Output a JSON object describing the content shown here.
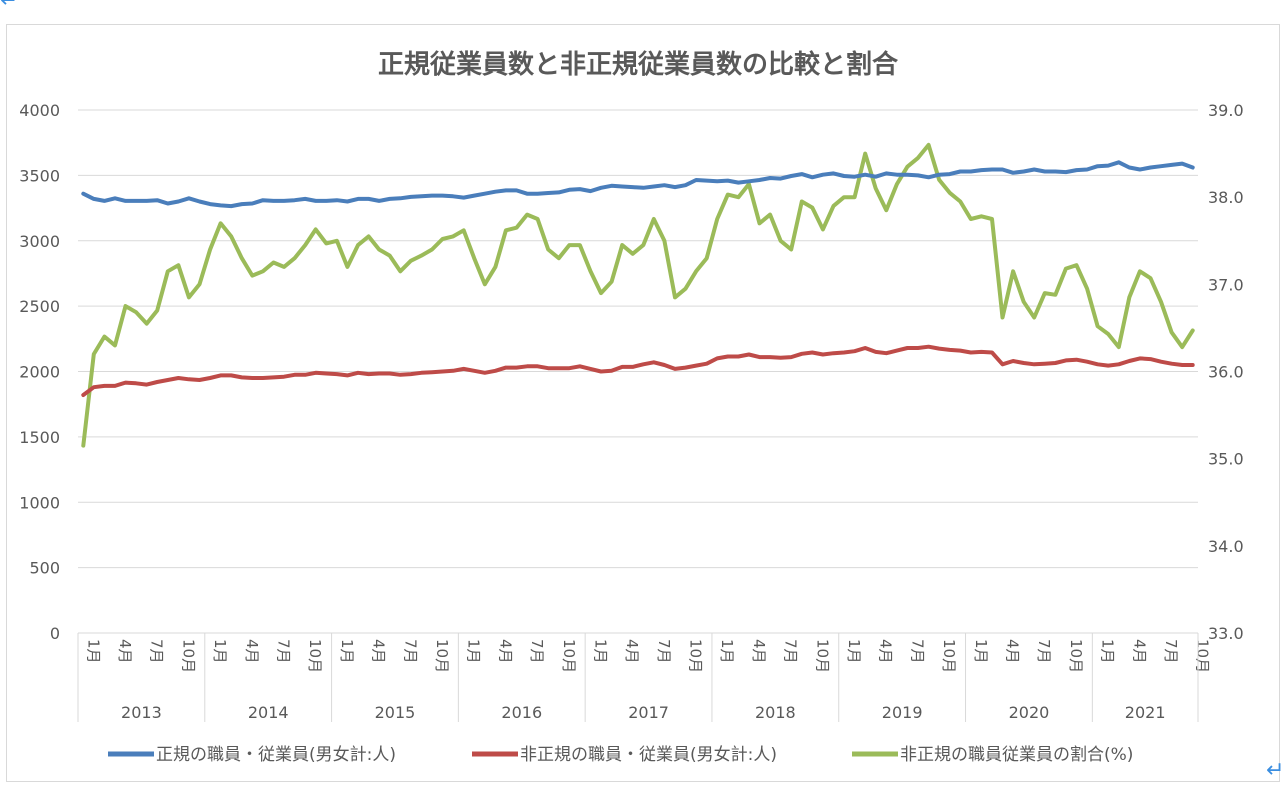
{
  "chart_data": {
    "type": "line",
    "title": "正規従業員数と非正規従業員数の比較と割合",
    "y_left": {
      "min": 0,
      "max": 4000,
      "step": 500,
      "ticks": [
        "0",
        "500",
        "1000",
        "1500",
        "2000",
        "2500",
        "3000",
        "3500",
        "4000"
      ]
    },
    "y_right": {
      "min": 33.0,
      "max": 39.0,
      "step": 1.0,
      "ticks": [
        "33.0",
        "34.0",
        "35.0",
        "36.0",
        "37.0",
        "38.0",
        "39.0"
      ]
    },
    "grid": true,
    "legend_placement": "bottom",
    "month_labels": [
      "1月",
      "4月",
      "7月",
      "10月"
    ],
    "years": [
      "2013",
      "2014",
      "2015",
      "2016",
      "2017",
      "2018",
      "2019",
      "2020",
      "2021"
    ],
    "last_year_months": 10,
    "series": [
      {
        "name": "正規の職員・従業員(男女計:人)",
        "axis": "left",
        "color": "#4a7ebb",
        "values": [
          3360,
          3320,
          3305,
          3325,
          3305,
          3305,
          3305,
          3310,
          3285,
          3300,
          3325,
          3300,
          3280,
          3270,
          3265,
          3280,
          3285,
          3310,
          3305,
          3305,
          3310,
          3320,
          3305,
          3305,
          3310,
          3300,
          3320,
          3320,
          3305,
          3320,
          3325,
          3335,
          3340,
          3345,
          3345,
          3340,
          3330,
          3345,
          3360,
          3375,
          3385,
          3385,
          3360,
          3360,
          3365,
          3370,
          3390,
          3395,
          3380,
          3405,
          3420,
          3415,
          3410,
          3405,
          3415,
          3425,
          3410,
          3425,
          3465,
          3460,
          3455,
          3460,
          3445,
          3455,
          3465,
          3480,
          3475,
          3495,
          3510,
          3485,
          3505,
          3515,
          3495,
          3490,
          3505,
          3490,
          3515,
          3505,
          3505,
          3500,
          3485,
          3505,
          3510,
          3530,
          3530,
          3540,
          3545,
          3545,
          3520,
          3530,
          3545,
          3530,
          3530,
          3525,
          3540,
          3545,
          3570,
          3575,
          3600,
          3560,
          3545,
          3560,
          3570,
          3580,
          3590,
          3560
        ]
      },
      {
        "name": "非正規の職員・従業員(男女計:人)",
        "axis": "left",
        "color": "#be4b48",
        "values": [
          1820,
          1880,
          1890,
          1890,
          1915,
          1910,
          1900,
          1920,
          1935,
          1950,
          1940,
          1935,
          1950,
          1970,
          1970,
          1955,
          1950,
          1950,
          1955,
          1960,
          1975,
          1975,
          1990,
          1985,
          1980,
          1970,
          1990,
          1980,
          1985,
          1985,
          1975,
          1980,
          1990,
          1995,
          2000,
          2005,
          2020,
          2005,
          1990,
          2005,
          2030,
          2030,
          2040,
          2040,
          2025,
          2025,
          2025,
          2040,
          2020,
          2000,
          2005,
          2035,
          2035,
          2055,
          2070,
          2050,
          2020,
          2030,
          2045,
          2060,
          2100,
          2115,
          2115,
          2130,
          2110,
          2110,
          2105,
          2110,
          2135,
          2145,
          2130,
          2140,
          2145,
          2155,
          2180,
          2150,
          2140,
          2160,
          2180,
          2180,
          2190,
          2175,
          2165,
          2160,
          2145,
          2150,
          2145,
          2055,
          2080,
          2065,
          2055,
          2060,
          2065,
          2085,
          2090,
          2075,
          2055,
          2045,
          2055,
          2080,
          2100,
          2095,
          2075,
          2060,
          2050,
          2050
        ]
      },
      {
        "name": "非正規の職員従業員の割合(%)",
        "axis": "right",
        "color": "#9bbb59",
        "values": [
          35.15,
          36.2,
          36.4,
          36.3,
          36.75,
          36.68,
          36.55,
          36.7,
          37.15,
          37.22,
          36.85,
          37.0,
          37.4,
          37.7,
          37.55,
          37.3,
          37.1,
          37.15,
          37.25,
          37.2,
          37.3,
          37.45,
          37.63,
          37.47,
          37.5,
          37.2,
          37.45,
          37.55,
          37.4,
          37.33,
          37.15,
          37.27,
          37.33,
          37.4,
          37.52,
          37.55,
          37.62,
          37.3,
          37.0,
          37.2,
          37.62,
          37.65,
          37.8,
          37.75,
          37.4,
          37.3,
          37.45,
          37.45,
          37.15,
          36.9,
          37.03,
          37.45,
          37.35,
          37.45,
          37.75,
          37.5,
          36.85,
          36.95,
          37.15,
          37.3,
          37.75,
          38.03,
          38.0,
          38.15,
          37.7,
          37.8,
          37.5,
          37.4,
          37.95,
          37.88,
          37.63,
          37.9,
          38.0,
          38.0,
          38.5,
          38.1,
          37.85,
          38.15,
          38.35,
          38.45,
          38.6,
          38.2,
          38.05,
          37.95,
          37.75,
          37.78,
          37.75,
          36.62,
          37.15,
          36.8,
          36.62,
          36.9,
          36.88,
          37.18,
          37.22,
          36.95,
          36.52,
          36.43,
          36.28,
          36.85,
          37.15,
          37.07,
          36.8,
          36.45,
          36.28,
          36.47
        ]
      }
    ]
  }
}
